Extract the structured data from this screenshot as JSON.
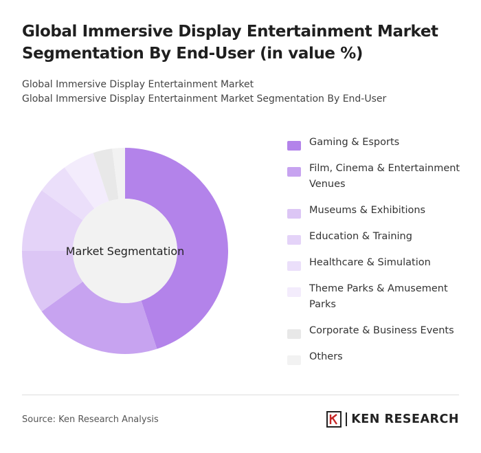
{
  "header": {
    "title": "Global Immersive Display Entertainment Market Segmentation By End-User (in value %)",
    "subtitle_line1": "Global Immersive Display Entertainment Market",
    "subtitle_line2": "Global Immersive Display Entertainment Market Segmentation By End-User"
  },
  "chart_data": {
    "type": "pie",
    "donut": true,
    "center_label": "Market Segmentation",
    "categories": [
      "Gaming & Esports",
      "Film, Cinema & Entertainment Venues",
      "Museums & Exhibitions",
      "Education & Training",
      "Healthcare & Simulation",
      "Theme Parks & Amusement Parks",
      "Corporate & Business Events",
      "Others"
    ],
    "values": [
      45,
      20,
      10,
      10,
      5,
      5,
      3,
      2
    ],
    "colors": [
      "#b383ea",
      "#c7a3f0",
      "#dcc6f5",
      "#e4d3f8",
      "#ebdffa",
      "#f3ecfc",
      "#e8e8e8",
      "#f2f2f2"
    ],
    "legend_position": "right"
  },
  "footer": {
    "source": "Source: Ken Research Analysis",
    "logo_text": "KEN RESEARCH"
  }
}
